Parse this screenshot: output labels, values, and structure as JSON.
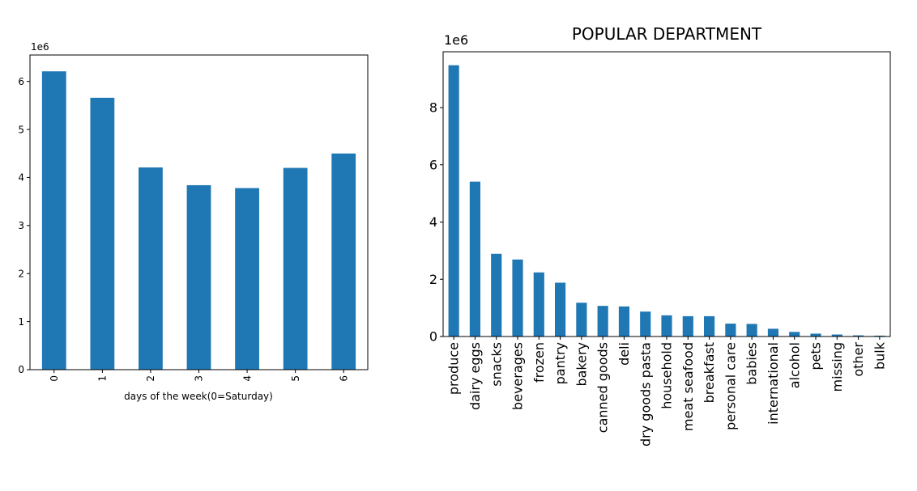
{
  "chart_data": [
    {
      "type": "bar",
      "title": "",
      "xlabel": "days of the week(0=Saturday)",
      "ylabel": "",
      "offset_label": "1e6",
      "scale": 1000000,
      "categories": [
        "0",
        "1",
        "2",
        "3",
        "4",
        "5",
        "6"
      ],
      "values": [
        6210000,
        5660000,
        4210000,
        3840000,
        3780000,
        4200000,
        4500000
      ],
      "ylim": [
        0,
        6550000
      ],
      "yticks": [
        0,
        1,
        2,
        3,
        4,
        5,
        6
      ],
      "bar_color": "#1f77b4",
      "grid": false,
      "legend": "none"
    },
    {
      "type": "bar",
      "title": "POPULAR DEPARTMENT",
      "xlabel": "",
      "ylabel": "",
      "offset_label": "1e6",
      "scale": 1000000,
      "categories": [
        "produce",
        "dairy eggs",
        "snacks",
        "beverages",
        "frozen",
        "pantry",
        "bakery",
        "canned goods",
        "deli",
        "dry goods pasta",
        "household",
        "meat seafood",
        "breakfast",
        "personal care",
        "babies",
        "international",
        "alcohol",
        "pets",
        "missing",
        "other",
        "bulk"
      ],
      "values": [
        9480000,
        5410000,
        2890000,
        2690000,
        2240000,
        1880000,
        1180000,
        1070000,
        1050000,
        870000,
        740000,
        710000,
        710000,
        450000,
        440000,
        270000,
        160000,
        100000,
        70000,
        40000,
        30000
      ],
      "ylim": [
        0,
        9950000
      ],
      "yticks": [
        0,
        2,
        4,
        6,
        8
      ],
      "bar_color": "#1f77b4",
      "grid": false,
      "legend": "none"
    }
  ]
}
